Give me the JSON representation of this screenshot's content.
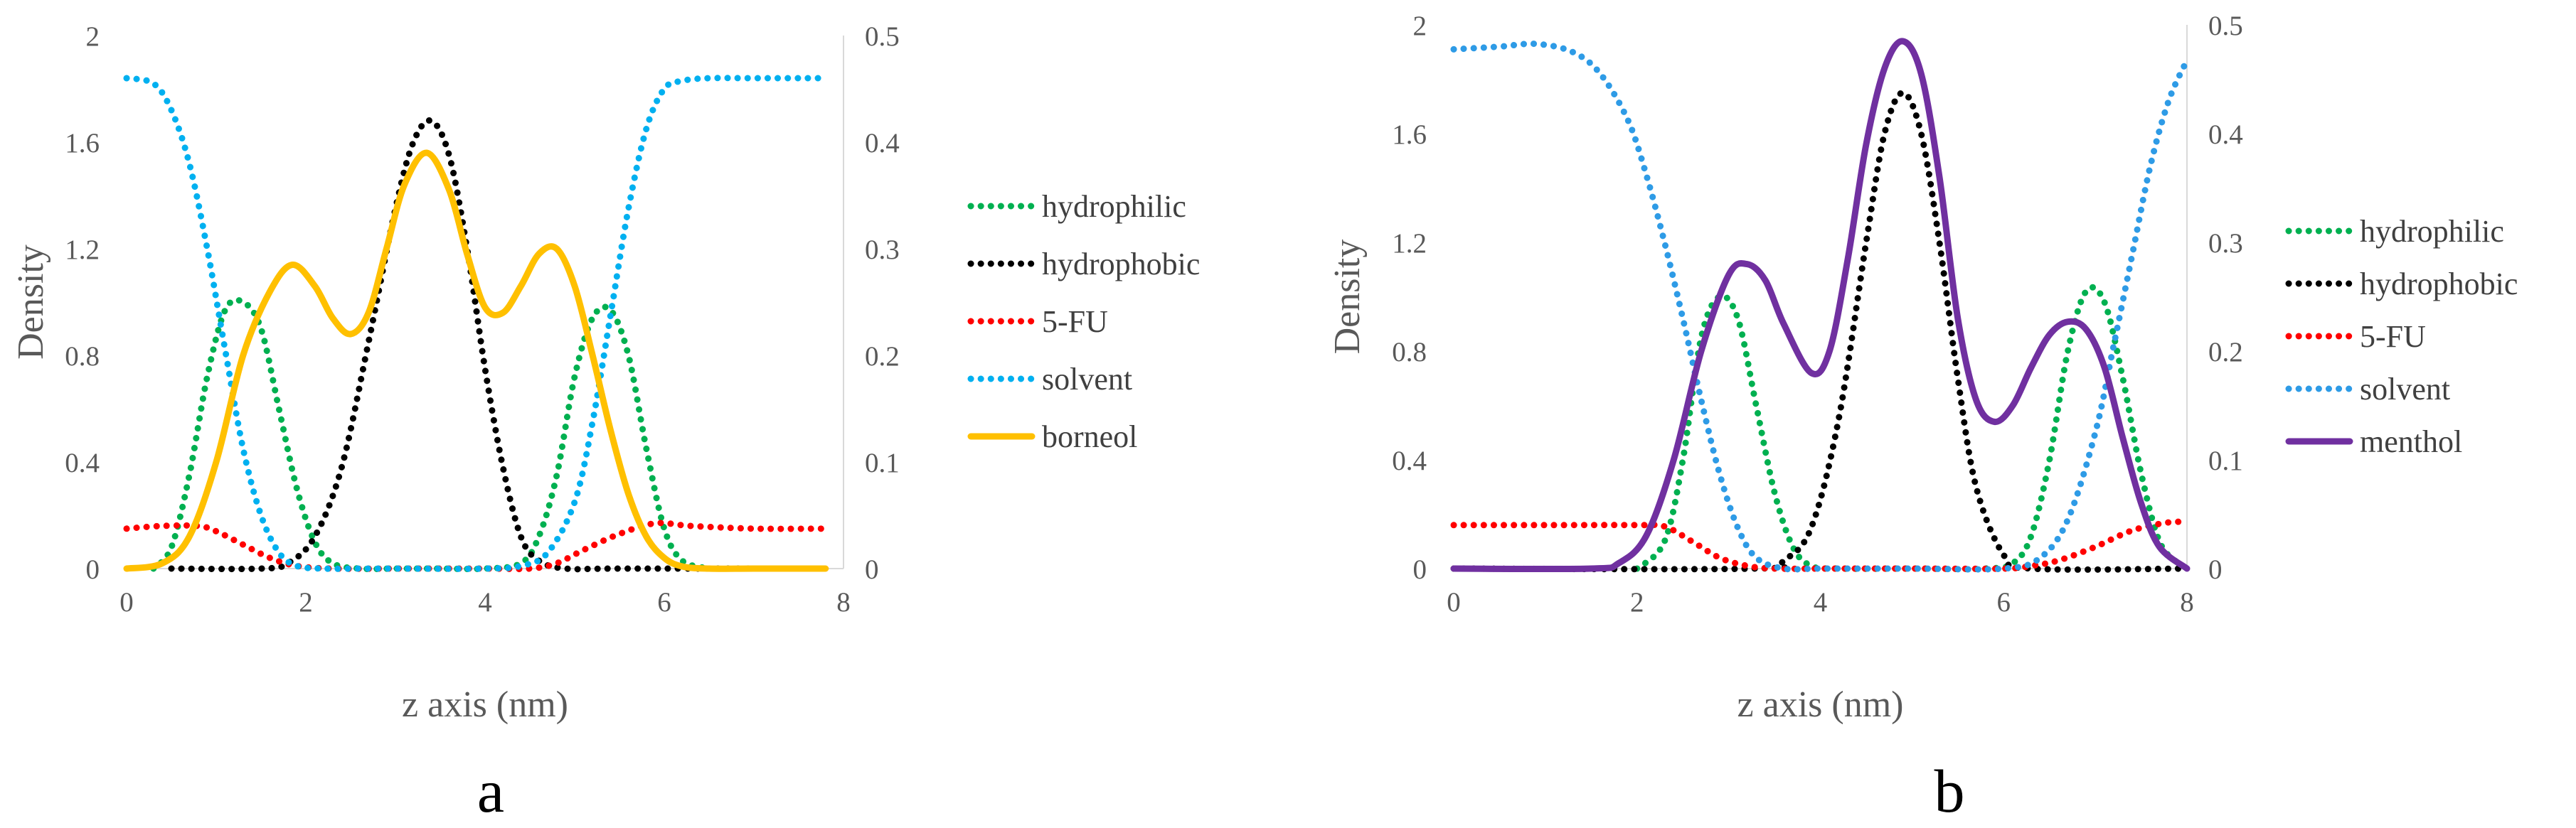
{
  "chart_data": [
    {
      "type": "line",
      "panel_label": "a",
      "xlabel": "z axis (nm)",
      "ylabel": "Density",
      "xlim": [
        0,
        8
      ],
      "ylim": [
        0,
        2
      ],
      "y2lim": [
        0,
        0.5
      ],
      "x_ticks": [
        "0",
        "2",
        "4",
        "6",
        "8"
      ],
      "y_ticks": [
        "0",
        "0.4",
        "0.8",
        "1.2",
        "1.6",
        "2"
      ],
      "y2_ticks": [
        "0",
        "0.1",
        "0.2",
        "0.3",
        "0.4",
        "0.5"
      ],
      "legend_position": "right",
      "series": [
        {
          "name": "hydrophilic",
          "color": "#00b050",
          "style": "dotted",
          "axis": "left",
          "x": [
            0.3,
            0.5,
            0.7,
            0.9,
            1.1,
            1.3,
            1.5,
            1.7,
            1.9,
            2.1,
            2.3,
            2.6,
            3.0,
            3.5,
            4.0,
            4.4,
            4.6,
            4.8,
            5.0,
            5.2,
            5.4,
            5.6,
            5.8,
            6.0,
            6.2,
            6.5
          ],
          "y": [
            0.0,
            0.08,
            0.35,
            0.72,
            0.97,
            1.0,
            0.9,
            0.6,
            0.3,
            0.1,
            0.02,
            0.0,
            0.0,
            0.0,
            0.0,
            0.02,
            0.12,
            0.35,
            0.72,
            0.94,
            0.97,
            0.8,
            0.45,
            0.15,
            0.03,
            0.0
          ]
        },
        {
          "name": "hydrophobic",
          "color": "#000000",
          "style": "dotted",
          "axis": "left",
          "x": [
            0.5,
            1.5,
            1.8,
            2.1,
            2.4,
            2.7,
            3.0,
            3.2,
            3.4,
            3.6,
            3.8,
            4.0,
            4.2,
            4.4,
            4.6,
            4.9,
            5.5,
            7.8
          ],
          "y": [
            0.0,
            0.0,
            0.02,
            0.12,
            0.38,
            0.85,
            1.35,
            1.6,
            1.68,
            1.55,
            1.2,
            0.75,
            0.38,
            0.12,
            0.03,
            0.0,
            0.0,
            0.0
          ]
        },
        {
          "name": "5-FU",
          "color": "#ff0000",
          "style": "dotted",
          "axis": "left",
          "x": [
            0.0,
            0.4,
            0.8,
            1.0,
            1.3,
            1.6,
            1.9,
            2.3,
            3.0,
            4.0,
            4.5,
            4.8,
            5.1,
            5.5,
            5.9,
            6.3,
            7.0,
            7.8
          ],
          "y": [
            0.15,
            0.16,
            0.16,
            0.14,
            0.09,
            0.04,
            0.01,
            0.0,
            0.0,
            0.0,
            0.0,
            0.02,
            0.07,
            0.13,
            0.17,
            0.16,
            0.15,
            0.15
          ]
        },
        {
          "name": "solvent",
          "color": "#00b0f0",
          "style": "dotted",
          "axis": "left",
          "x": [
            0.0,
            0.3,
            0.5,
            0.7,
            0.9,
            1.1,
            1.3,
            1.5,
            1.7,
            1.9,
            2.2,
            2.6,
            3.0,
            4.0,
            4.4,
            4.7,
            5.0,
            5.2,
            5.4,
            5.6,
            5.8,
            6.0,
            6.2,
            6.5,
            7.0,
            7.8
          ],
          "y": [
            1.84,
            1.82,
            1.72,
            1.52,
            1.2,
            0.82,
            0.45,
            0.2,
            0.06,
            0.01,
            0.0,
            0.0,
            0.0,
            0.0,
            0.01,
            0.06,
            0.25,
            0.55,
            0.95,
            1.35,
            1.65,
            1.8,
            1.83,
            1.84,
            1.84,
            1.84
          ]
        },
        {
          "name": "borneol",
          "color": "#ffc000",
          "style": "solid",
          "axis": "right",
          "x": [
            0.0,
            0.4,
            0.7,
            1.0,
            1.3,
            1.6,
            1.85,
            2.1,
            2.3,
            2.5,
            2.7,
            2.9,
            3.1,
            3.35,
            3.6,
            3.8,
            4.0,
            4.2,
            4.4,
            4.6,
            4.8,
            5.0,
            5.2,
            5.4,
            5.6,
            5.8,
            6.0,
            6.2,
            6.5,
            7.0,
            7.8
          ],
          "y": [
            0.0,
            0.005,
            0.03,
            0.1,
            0.2,
            0.26,
            0.285,
            0.265,
            0.235,
            0.22,
            0.24,
            0.3,
            0.36,
            0.39,
            0.355,
            0.295,
            0.245,
            0.24,
            0.265,
            0.295,
            0.3,
            0.265,
            0.2,
            0.13,
            0.07,
            0.03,
            0.01,
            0.002,
            0.0,
            0.0,
            0.0
          ]
        }
      ]
    },
    {
      "type": "line",
      "panel_label": "b",
      "xlabel": "z axis (nm)",
      "ylabel": "Density",
      "xlim": [
        0,
        8
      ],
      "ylim": [
        0,
        2
      ],
      "y2lim": [
        0,
        0.5
      ],
      "x_ticks": [
        "0",
        "2",
        "4",
        "6",
        "8"
      ],
      "y_ticks": [
        "0",
        "0.4",
        "0.8",
        "1.2",
        "1.6",
        "2"
      ],
      "y2_ticks": [
        "0",
        "0.1",
        "0.2",
        "0.3",
        "0.4",
        "0.5"
      ],
      "legend_position": "right",
      "series": [
        {
          "name": "hydrophilic",
          "color": "#00b050",
          "style": "dotted",
          "axis": "left",
          "x": [
            2.0,
            2.3,
            2.5,
            2.7,
            2.9,
            3.1,
            3.3,
            3.5,
            3.7,
            3.9,
            4.2,
            5.0,
            5.8,
            6.1,
            6.3,
            6.5,
            6.7,
            6.9,
            7.1,
            7.3,
            7.5,
            7.7,
            7.9
          ],
          "y": [
            0.0,
            0.1,
            0.4,
            0.85,
            1.0,
            0.92,
            0.6,
            0.28,
            0.08,
            0.01,
            0.0,
            0.0,
            0.0,
            0.02,
            0.12,
            0.4,
            0.8,
            1.02,
            0.98,
            0.7,
            0.35,
            0.1,
            0.02
          ]
        },
        {
          "name": "hydrophobic",
          "color": "#000000",
          "style": "dotted",
          "axis": "left",
          "x": [
            0.0,
            3.3,
            3.6,
            3.9,
            4.2,
            4.5,
            4.7,
            4.9,
            5.1,
            5.3,
            5.5,
            5.7,
            6.0,
            6.3,
            8.0
          ],
          "y": [
            0.0,
            0.0,
            0.03,
            0.15,
            0.55,
            1.2,
            1.6,
            1.75,
            1.6,
            1.2,
            0.7,
            0.3,
            0.05,
            0.0,
            0.0
          ]
        },
        {
          "name": "5-FU",
          "color": "#ff0000",
          "style": "dotted",
          "axis": "left",
          "x": [
            0.0,
            1.0,
            2.0,
            2.3,
            2.6,
            2.9,
            3.2,
            3.5,
            4.0,
            5.0,
            6.0,
            6.3,
            6.6,
            7.0,
            7.4,
            7.8,
            8.0
          ],
          "y": [
            0.16,
            0.16,
            0.16,
            0.155,
            0.1,
            0.04,
            0.01,
            0.0,
            0.0,
            0.0,
            0.0,
            0.01,
            0.03,
            0.08,
            0.14,
            0.17,
            0.17
          ]
        },
        {
          "name": "solvent",
          "color": "#2e9be6",
          "style": "dotted",
          "axis": "left",
          "x": [
            0.0,
            0.5,
            0.9,
            1.3,
            1.6,
            1.9,
            2.1,
            2.3,
            2.5,
            2.7,
            2.9,
            3.1,
            3.3,
            3.6,
            4.0,
            5.0,
            6.0,
            6.4,
            6.7,
            7.0,
            7.2,
            7.4,
            7.6,
            7.8,
            8.0
          ],
          "y": [
            1.91,
            1.92,
            1.93,
            1.9,
            1.82,
            1.65,
            1.45,
            1.2,
            0.92,
            0.62,
            0.35,
            0.15,
            0.04,
            0.0,
            0.0,
            0.0,
            0.0,
            0.04,
            0.18,
            0.5,
            0.82,
            1.15,
            1.48,
            1.72,
            1.87
          ]
        },
        {
          "name": "menthol",
          "color": "#7030a0",
          "style": "solid",
          "axis": "right",
          "x": [
            0.0,
            1.5,
            1.8,
            2.1,
            2.4,
            2.7,
            3.0,
            3.2,
            3.4,
            3.6,
            3.9,
            4.1,
            4.3,
            4.5,
            4.7,
            4.9,
            5.1,
            5.3,
            5.5,
            5.7,
            5.9,
            6.1,
            6.3,
            6.5,
            6.7,
            6.9,
            7.1,
            7.3,
            7.5,
            7.7,
            8.0
          ],
          "y": [
            0.0,
            0.0,
            0.005,
            0.03,
            0.1,
            0.2,
            0.27,
            0.28,
            0.265,
            0.225,
            0.18,
            0.2,
            0.285,
            0.39,
            0.46,
            0.485,
            0.455,
            0.36,
            0.23,
            0.155,
            0.135,
            0.15,
            0.185,
            0.215,
            0.227,
            0.22,
            0.185,
            0.12,
            0.06,
            0.02,
            0.0
          ]
        }
      ]
    }
  ]
}
